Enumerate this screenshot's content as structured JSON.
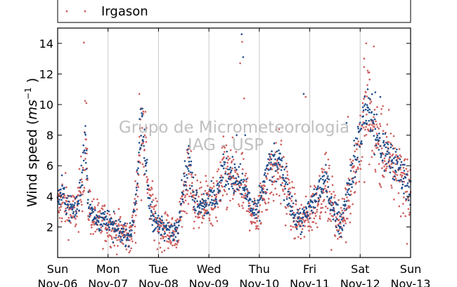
{
  "chart_data": {
    "type": "scatter",
    "title": "",
    "ylabel_prefix": "Wind speed (",
    "ylabel_unit_base": "ms",
    "ylabel_unit_exp": "−1",
    "ylabel_suffix": " )",
    "xlabel": "",
    "ylim": [
      0,
      15
    ],
    "yticks": [
      2,
      4,
      6,
      8,
      10,
      12,
      14
    ],
    "x_domain_days": [
      0,
      7
    ],
    "xticks": [
      {
        "day": "Sun",
        "date": "Nov-06"
      },
      {
        "day": "Mon",
        "date": "Nov-07"
      },
      {
        "day": "Tue",
        "date": "Nov-08"
      },
      {
        "day": "Wed",
        "date": "Nov-09"
      },
      {
        "day": "Thu",
        "date": "Nov-10"
      },
      {
        "day": "Fri",
        "date": "Nov-11"
      },
      {
        "day": "Sat",
        "date": "Nov-12"
      },
      {
        "day": "Sun",
        "date": "Nov-13"
      }
    ],
    "grid": "vertical",
    "legend_position": "top",
    "watermark": [
      "Grupo de Micrometeorologia",
      "IAG - USP"
    ],
    "series": [
      {
        "name": "Irgason",
        "color": "#cd5c5c",
        "marker": "dot",
        "envelope": [
          [
            0.0,
            3.2
          ],
          [
            0.08,
            3.8
          ],
          [
            0.18,
            3.5
          ],
          [
            0.3,
            2.8
          ],
          [
            0.42,
            3.5
          ],
          [
            0.5,
            5.5
          ],
          [
            0.55,
            8.0
          ],
          [
            0.6,
            3.8
          ],
          [
            0.7,
            2.5
          ],
          [
            0.85,
            2.3
          ],
          [
            1.0,
            2.2
          ],
          [
            1.15,
            1.8
          ],
          [
            1.3,
            1.6
          ],
          [
            1.45,
            1.3
          ],
          [
            1.55,
            3.5
          ],
          [
            1.62,
            6.5
          ],
          [
            1.68,
            8.8
          ],
          [
            1.75,
            6.5
          ],
          [
            1.82,
            4.0
          ],
          [
            1.92,
            2.8
          ],
          [
            2.0,
            2.0
          ],
          [
            2.15,
            1.8
          ],
          [
            2.3,
            1.5
          ],
          [
            2.4,
            2.0
          ],
          [
            2.5,
            3.8
          ],
          [
            2.6,
            5.8
          ],
          [
            2.7,
            4.0
          ],
          [
            2.82,
            3.2
          ],
          [
            2.95,
            3.5
          ],
          [
            3.1,
            3.5
          ],
          [
            3.2,
            4.2
          ],
          [
            3.3,
            5.5
          ],
          [
            3.45,
            5.2
          ],
          [
            3.55,
            4.8
          ],
          [
            3.65,
            4.5
          ],
          [
            3.75,
            4.0
          ],
          [
            3.85,
            3.0
          ],
          [
            3.95,
            2.5
          ],
          [
            4.1,
            4.5
          ],
          [
            4.25,
            5.8
          ],
          [
            4.4,
            5.8
          ],
          [
            4.55,
            4.5
          ],
          [
            4.7,
            2.6
          ],
          [
            4.85,
            2.2
          ],
          [
            5.0,
            3.0
          ],
          [
            5.15,
            3.8
          ],
          [
            5.3,
            4.8
          ],
          [
            5.4,
            4.0
          ],
          [
            5.5,
            3.0
          ],
          [
            5.62,
            2.0
          ],
          [
            5.75,
            4.0
          ],
          [
            5.9,
            6.0
          ],
          [
            6.0,
            7.5
          ],
          [
            6.12,
            9.5
          ],
          [
            6.25,
            8.5
          ],
          [
            6.4,
            7.0
          ],
          [
            6.55,
            6.5
          ],
          [
            6.7,
            6.0
          ],
          [
            6.85,
            5.2
          ],
          [
            7.0,
            4.2
          ]
        ],
        "values_approx": [
          [
            0.05,
            3.1
          ],
          [
            0.22,
            2.6
          ],
          [
            0.52,
            14.05
          ],
          [
            0.57,
            10.1
          ],
          [
            1.12,
            1.3
          ],
          [
            1.46,
            0.6
          ],
          [
            1.62,
            10.7
          ],
          [
            1.7,
            9.4
          ],
          [
            2.32,
            0.8
          ],
          [
            2.6,
            7.1
          ],
          [
            2.95,
            4.2
          ],
          [
            3.25,
            6.0
          ],
          [
            3.62,
            12.7
          ],
          [
            3.66,
            14.1
          ],
          [
            3.7,
            10.4
          ],
          [
            4.33,
            7.5
          ],
          [
            4.52,
            2.1
          ],
          [
            4.8,
            2.6
          ],
          [
            4.92,
            10.5
          ],
          [
            5.2,
            2.7
          ],
          [
            5.36,
            2.4
          ],
          [
            5.43,
            0.5
          ],
          [
            5.72,
            1.0
          ],
          [
            5.76,
            9.2
          ],
          [
            6.08,
            13.0
          ],
          [
            6.12,
            14.0
          ],
          [
            6.18,
            12.1
          ],
          [
            6.27,
            13.8
          ],
          [
            6.45,
            9.9
          ],
          [
            6.87,
            5.5
          ],
          [
            6.93,
            0.9
          ]
        ]
      },
      {
        "name": "",
        "color": "#1f4e8c",
        "marker": "dot",
        "envelope": [
          [
            0.0,
            3.8
          ],
          [
            0.08,
            4.2
          ],
          [
            0.18,
            3.6
          ],
          [
            0.3,
            3.0
          ],
          [
            0.42,
            3.6
          ],
          [
            0.5,
            6.2
          ],
          [
            0.55,
            8.3
          ],
          [
            0.6,
            4.0
          ],
          [
            0.7,
            2.6
          ],
          [
            0.85,
            2.4
          ],
          [
            1.0,
            2.3
          ],
          [
            1.15,
            1.9
          ],
          [
            1.3,
            1.6
          ],
          [
            1.45,
            1.4
          ],
          [
            1.55,
            4.0
          ],
          [
            1.62,
            7.2
          ],
          [
            1.68,
            8.3
          ],
          [
            1.75,
            6.0
          ],
          [
            1.82,
            3.5
          ],
          [
            1.92,
            2.4
          ],
          [
            2.0,
            2.1
          ],
          [
            2.15,
            1.8
          ],
          [
            2.3,
            1.7
          ],
          [
            2.4,
            2.4
          ],
          [
            2.5,
            5.0
          ],
          [
            2.6,
            6.2
          ],
          [
            2.7,
            4.0
          ],
          [
            2.82,
            3.6
          ],
          [
            2.95,
            3.6
          ],
          [
            3.1,
            3.8
          ],
          [
            3.2,
            4.5
          ],
          [
            3.3,
            5.8
          ],
          [
            3.45,
            5.5
          ],
          [
            3.55,
            5.0
          ],
          [
            3.65,
            4.8
          ],
          [
            3.75,
            4.2
          ],
          [
            3.85,
            3.2
          ],
          [
            3.95,
            2.8
          ],
          [
            4.1,
            5.0
          ],
          [
            4.25,
            6.2
          ],
          [
            4.4,
            6.0
          ],
          [
            4.55,
            4.6
          ],
          [
            4.7,
            2.6
          ],
          [
            4.85,
            2.4
          ],
          [
            5.0,
            3.2
          ],
          [
            5.15,
            4.2
          ],
          [
            5.3,
            5.0
          ],
          [
            5.4,
            4.0
          ],
          [
            5.5,
            3.0
          ],
          [
            5.62,
            2.0
          ],
          [
            5.75,
            4.5
          ],
          [
            5.9,
            6.5
          ],
          [
            6.0,
            8.0
          ],
          [
            6.12,
            10.0
          ],
          [
            6.25,
            8.8
          ],
          [
            6.4,
            7.2
          ],
          [
            6.55,
            6.6
          ],
          [
            6.7,
            6.1
          ],
          [
            6.85,
            5.4
          ],
          [
            7.0,
            4.4
          ]
        ],
        "values_approx": [
          [
            0.55,
            8.6
          ],
          [
            1.1,
            1.0
          ],
          [
            1.68,
            9.3
          ],
          [
            2.12,
            1.1
          ],
          [
            2.6,
            7.3
          ],
          [
            3.05,
            5.0
          ],
          [
            3.55,
            8.0
          ],
          [
            3.65,
            14.6
          ],
          [
            3.68,
            13.1
          ],
          [
            3.72,
            8.0
          ],
          [
            4.4,
            6.8
          ],
          [
            4.88,
            10.7
          ],
          [
            5.38,
            3.8
          ],
          [
            5.6,
            2.7
          ],
          [
            5.73,
            8.8
          ],
          [
            6.15,
            11.0
          ],
          [
            6.3,
            10.8
          ],
          [
            6.4,
            10.5
          ]
        ]
      }
    ]
  }
}
